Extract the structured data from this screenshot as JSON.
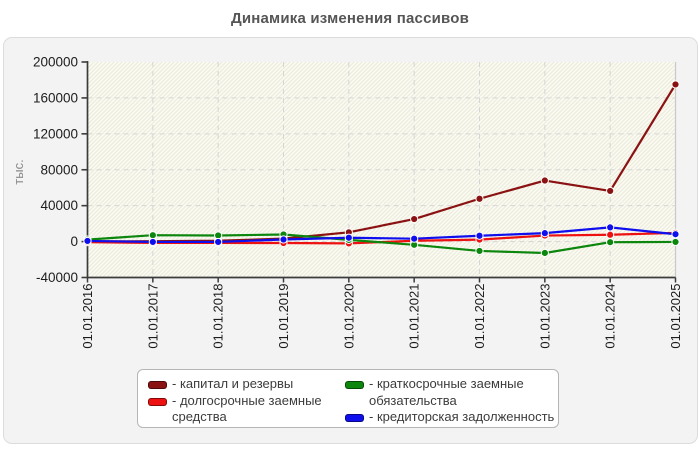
{
  "title": "Динамика изменения пассивов",
  "chart_data": {
    "type": "line",
    "title": "Динамика изменения пассивов",
    "ylabel": "тыс.",
    "xlabel": "",
    "ylim": [
      -40000,
      200000
    ],
    "ytick_step": 40000,
    "ytick_labels": [
      "200000",
      "160000",
      "120000",
      "80000",
      "40000",
      "0",
      "-40000"
    ],
    "grid": "dashed",
    "legend_position": "bottom",
    "categories": [
      "01.01.2016",
      "01.01.2017",
      "01.01.2018",
      "01.01.2019",
      "01.01.2020",
      "01.01.2021",
      "01.01.2022",
      "01.01.2023",
      "01.01.2024",
      "01.01.2025"
    ],
    "series": [
      {
        "name": "капитал и резервы",
        "color": "#8b1212",
        "values": [
          200,
          400,
          900,
          3300,
          10300,
          25100,
          47700,
          68000,
          56400,
          175000
        ]
      },
      {
        "name": "долгосрочные заемные средства",
        "color": "#ee1111",
        "values": [
          -600,
          -1500,
          -1500,
          -1600,
          -2000,
          900,
          2200,
          6700,
          7600,
          9700
        ]
      },
      {
        "name": "краткосрочные заемные обязательства",
        "color": "#0d860d",
        "values": [
          2200,
          7100,
          6800,
          7900,
          1900,
          -3600,
          -10400,
          -12700,
          -700,
          -400
        ]
      },
      {
        "name": "кредиторская задолженность",
        "color": "#0f0fee",
        "values": [
          700,
          -400,
          -400,
          2300,
          4300,
          3200,
          6500,
          9400,
          15800,
          8200
        ]
      }
    ]
  },
  "legend": {
    "items": [
      {
        "label": "- капитал и резервы"
      },
      {
        "label": "- долгосрочные заемные средства"
      },
      {
        "label": "- краткосрочные заемные обязательства"
      },
      {
        "label": "- кредиторская задолженность"
      }
    ]
  }
}
